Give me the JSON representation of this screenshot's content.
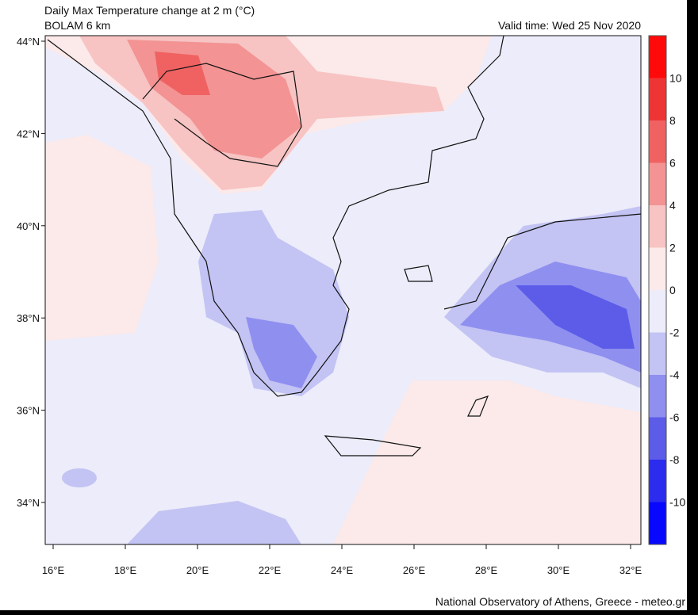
{
  "header": {
    "title": "Daily Max Temperature change at 2 m (°C)",
    "subtitle": "BOLAM 6 km",
    "valid_time": "Valid time: Wed 25 Nov 2020"
  },
  "map": {
    "lat_labels": [
      "44°N",
      "42°N",
      "40°N",
      "38°N",
      "36°N",
      "34°N"
    ],
    "lon_labels": [
      "16°E",
      "18°E",
      "20°E",
      "22°E",
      "24°E",
      "26°E",
      "28°E",
      "30°E",
      "32°E"
    ]
  },
  "colorbar": {
    "labels": [
      10,
      8,
      6,
      4,
      2,
      0,
      -2,
      -4,
      -6,
      -8,
      -10
    ],
    "colors": [
      "#ff0a0a",
      "#ee3535",
      "#f06262",
      "#f39393",
      "#f7c3c3",
      "#fce9e9",
      "#ececfa",
      "#c3c3f4",
      "#8f8ff0",
      "#5c5ce9",
      "#2c2cee",
      "#0808ff"
    ]
  },
  "footer": {
    "credit": "National Observatory of Athens, Greece - meteo.gr"
  }
}
